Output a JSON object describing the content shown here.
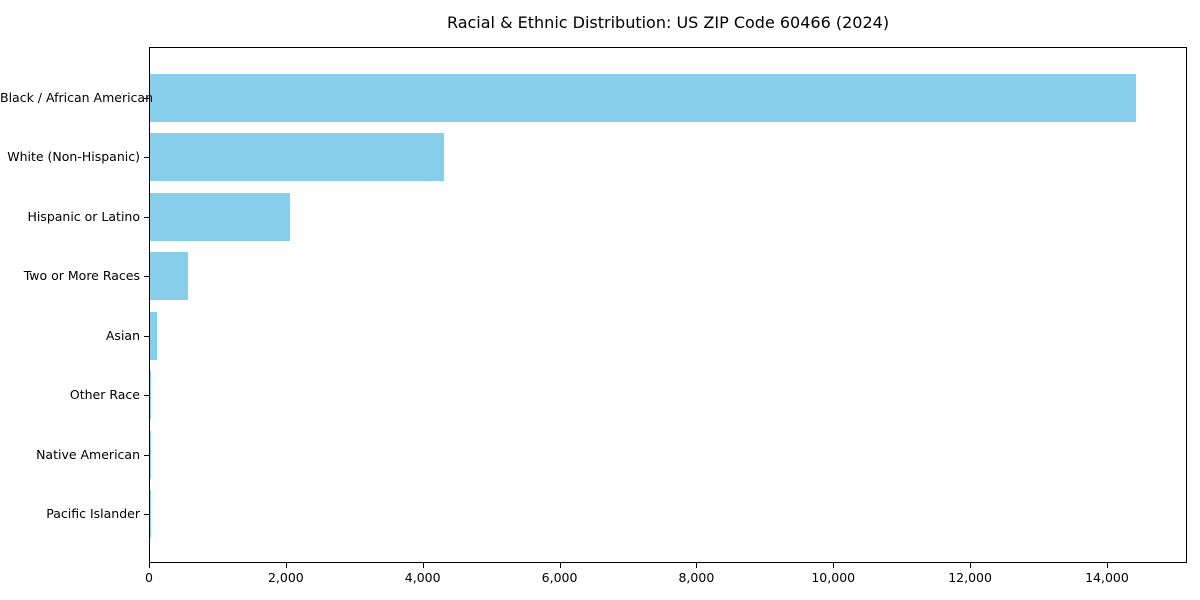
{
  "chart_data": {
    "type": "bar",
    "orientation": "horizontal",
    "title": "Racial & Ethnic Distribution: US ZIP Code 60466 (2024)",
    "categories": [
      "Black / African American",
      "White (Non-Hispanic)",
      "Hispanic or Latino",
      "Two or More Races",
      "Asian",
      "Other Race",
      "Native American",
      "Pacific Islander"
    ],
    "values": [
      14410,
      4300,
      2045,
      555,
      95,
      20,
      8,
      3
    ],
    "xlabel": "",
    "ylabel": "",
    "xlim": [
      0,
      15170
    ],
    "xticks": [
      0,
      2000,
      4000,
      6000,
      8000,
      10000,
      12000,
      14000
    ],
    "xtick_labels": [
      "0",
      "2,000",
      "4,000",
      "6,000",
      "8,000",
      "10,000",
      "12,000",
      "14,000"
    ],
    "bar_color": "#87CEEB",
    "text_color": "#000000",
    "axis_color": "#000000",
    "background": "#ffffff",
    "grid": false,
    "legend": "none"
  }
}
